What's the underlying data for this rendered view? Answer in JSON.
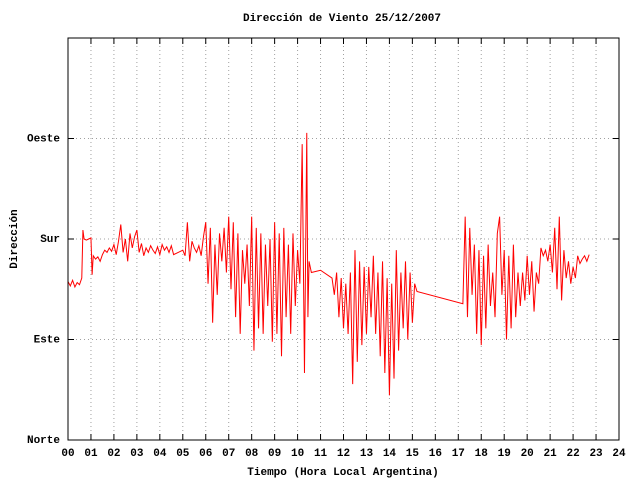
{
  "chart_data": {
    "type": "line",
    "title": "Dirección de Viento 25/12/2007",
    "x_label": "Tiempo (Hora Local Argentina)",
    "y_label": "Dirección",
    "color": "#ff0000",
    "grid": true,
    "xlim": [
      0,
      24
    ],
    "ylim": [
      0,
      360
    ],
    "xticks": [
      {
        "value": 0,
        "label": "00"
      },
      {
        "value": 1,
        "label": "01"
      },
      {
        "value": 2,
        "label": "02"
      },
      {
        "value": 3,
        "label": "03"
      },
      {
        "value": 4,
        "label": "04"
      },
      {
        "value": 5,
        "label": "05"
      },
      {
        "value": 6,
        "label": "06"
      },
      {
        "value": 7,
        "label": "07"
      },
      {
        "value": 8,
        "label": "08"
      },
      {
        "value": 9,
        "label": "09"
      },
      10,
      11,
      12,
      13,
      14,
      15,
      16,
      17,
      18,
      19,
      20,
      21,
      22,
      23,
      24
    ],
    "yticks": [
      {
        "value": 0,
        "label": "Norte"
      },
      {
        "value": 90,
        "label": "Este"
      },
      {
        "value": 180,
        "label": "Sur"
      },
      {
        "value": 270,
        "label": "Oeste"
      }
    ],
    "x": [
      0.0,
      0.1,
      0.2,
      0.3,
      0.4,
      0.5,
      0.6,
      0.65,
      0.7,
      0.8,
      0.9,
      1.0,
      1.05,
      1.1,
      1.2,
      1.3,
      1.4,
      1.5,
      1.6,
      1.7,
      1.8,
      1.9,
      2.0,
      2.1,
      2.2,
      2.3,
      2.4,
      2.5,
      2.6,
      2.7,
      2.8,
      2.9,
      3.0,
      3.1,
      3.2,
      3.3,
      3.4,
      3.5,
      3.6,
      3.7,
      3.8,
      3.9,
      4.0,
      4.1,
      4.2,
      4.3,
      4.4,
      4.5,
      4.6,
      4.8,
      5.0,
      5.1,
      5.2,
      5.3,
      5.4,
      5.5,
      5.6,
      5.7,
      5.8,
      5.9,
      6.0,
      6.1,
      6.2,
      6.3,
      6.4,
      6.5,
      6.6,
      6.7,
      6.8,
      6.9,
      7.0,
      7.1,
      7.2,
      7.3,
      7.4,
      7.5,
      7.6,
      7.7,
      7.8,
      7.9,
      8.0,
      8.1,
      8.2,
      8.3,
      8.4,
      8.5,
      8.6,
      8.7,
      8.8,
      8.9,
      9.0,
      9.1,
      9.2,
      9.3,
      9.4,
      9.5,
      9.6,
      9.7,
      9.8,
      9.9,
      10.0,
      10.1,
      10.2,
      10.3,
      10.4,
      10.45,
      10.5,
      10.6,
      11.0,
      11.5,
      11.6,
      11.7,
      11.8,
      11.9,
      12.0,
      12.1,
      12.2,
      12.3,
      12.4,
      12.5,
      12.6,
      12.7,
      12.8,
      12.9,
      13.0,
      13.1,
      13.2,
      13.3,
      13.4,
      13.5,
      13.6,
      13.7,
      13.8,
      13.9,
      14.0,
      14.1,
      14.2,
      14.3,
      14.4,
      14.5,
      14.6,
      14.7,
      14.8,
      14.9,
      15.0,
      15.1,
      15.2,
      17.2,
      17.3,
      17.4,
      17.5,
      17.6,
      17.7,
      17.8,
      17.9,
      18.0,
      18.1,
      18.2,
      18.3,
      18.4,
      18.5,
      18.6,
      18.7,
      18.8,
      18.9,
      19.0,
      19.1,
      19.2,
      19.3,
      19.4,
      19.5,
      19.6,
      19.7,
      19.8,
      19.9,
      20.0,
      20.1,
      20.2,
      20.3,
      20.4,
      20.5,
      20.6,
      20.7,
      20.8,
      20.9,
      21.0,
      21.1,
      21.2,
      21.3,
      21.4,
      21.5,
      21.6,
      21.7,
      21.8,
      21.9,
      22.0,
      22.1,
      22.2,
      22.3,
      22.4,
      22.5,
      22.6,
      22.7
    ],
    "values": [
      142,
      138,
      143,
      137,
      141,
      139,
      145,
      188,
      180,
      179,
      180,
      181,
      148,
      165,
      162,
      164,
      160,
      166,
      170,
      168,
      172,
      169,
      175,
      166,
      178,
      193,
      168,
      180,
      160,
      185,
      172,
      182,
      188,
      168,
      176,
      165,
      172,
      168,
      174,
      170,
      167,
      173,
      166,
      175,
      170,
      173,
      168,
      174,
      166,
      168,
      170,
      165,
      195,
      160,
      178,
      172,
      168,
      174,
      165,
      182,
      195,
      140,
      190,
      105,
      175,
      130,
      185,
      160,
      190,
      150,
      200,
      135,
      195,
      110,
      185,
      95,
      170,
      140,
      175,
      120,
      200,
      80,
      190,
      100,
      185,
      95,
      175,
      120,
      180,
      88,
      195,
      95,
      185,
      75,
      190,
      110,
      175,
      95,
      185,
      120,
      170,
      140,
      265,
      60,
      275,
      110,
      160,
      150,
      152,
      145,
      130,
      150,
      110,
      145,
      100,
      140,
      95,
      150,
      50,
      170,
      70,
      160,
      85,
      155,
      95,
      155,
      110,
      165,
      95,
      150,
      75,
      160,
      60,
      145,
      40,
      140,
      55,
      170,
      80,
      150,
      100,
      160,
      90,
      150,
      105,
      140,
      133,
      122,
      200,
      110,
      190,
      130,
      175,
      95,
      170,
      85,
      165,
      100,
      175,
      120,
      150,
      110,
      185,
      200,
      130,
      170,
      90,
      165,
      100,
      175,
      110,
      150,
      120,
      150,
      125,
      165,
      130,
      160,
      115,
      150,
      140,
      172,
      165,
      170,
      160,
      175,
      150,
      190,
      135,
      200,
      125,
      170,
      145,
      160,
      140,
      155,
      145,
      165,
      158,
      162,
      165,
      160,
      166
    ]
  }
}
